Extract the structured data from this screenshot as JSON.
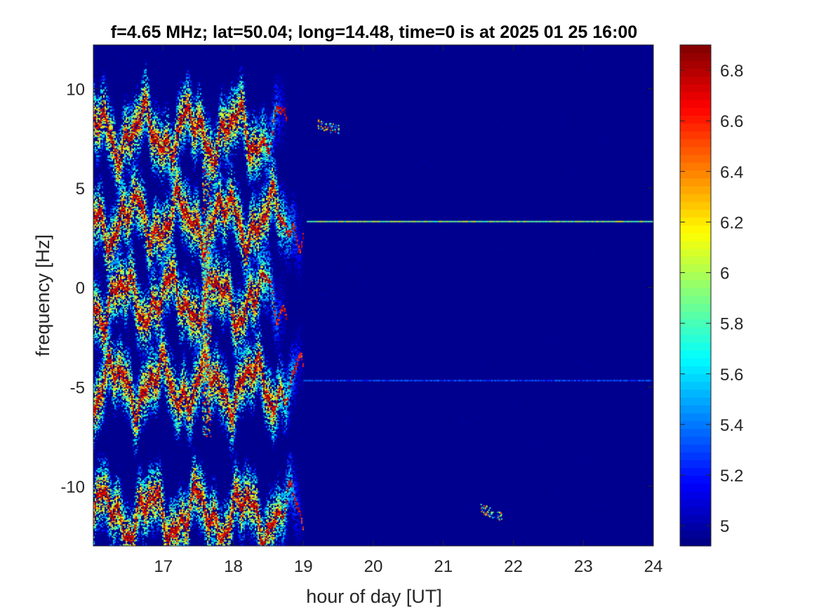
{
  "chart_data": {
    "type": "heatmap",
    "title": "f=4.65 MHz;  lat=50.04; long=14.48, time=0 is at 2025 01 25 16:00",
    "xlabel": "hour of day [UT]",
    "ylabel": "frequency [Hz]",
    "xlim": [
      16,
      24
    ],
    "ylim": [
      -13,
      12.2
    ],
    "x_ticks": [
      17,
      18,
      19,
      20,
      21,
      22,
      23,
      24
    ],
    "y_ticks": [
      -10,
      -5,
      0,
      5,
      10
    ],
    "x_tick_labels": [
      "17",
      "18",
      "19",
      "20",
      "21",
      "22",
      "23",
      "24"
    ],
    "y_tick_labels": [
      "-10",
      "-5",
      "0",
      "5",
      "10"
    ],
    "colorbar": {
      "colormap": "jet",
      "clim": [
        4.92,
        6.9
      ],
      "ticks": [
        5,
        5.2,
        5.4,
        5.6,
        5.8,
        6,
        6.2,
        6.4,
        6.6,
        6.8
      ],
      "tick_labels": [
        "5",
        "5.2",
        "5.4",
        "5.6",
        "5.8",
        "6",
        "6.2",
        "6.4",
        "6.6",
        "6.8"
      ]
    },
    "background_value": 4.95,
    "bands": [
      {
        "center_frequency": 7.8,
        "x_start": 16.0,
        "x_end": 18.75
      },
      {
        "center_frequency": 3.4,
        "x_start": 16.0,
        "x_end": 19.0
      },
      {
        "center_frequency": -0.6,
        "x_start": 16.0,
        "x_end": 18.75
      },
      {
        "center_frequency": -4.9,
        "x_start": 16.0,
        "x_end": 19.0
      },
      {
        "center_frequency": -11.4,
        "x_start": 16.0,
        "x_end": 19.0
      }
    ],
    "steady_lines": [
      {
        "frequency": 3.35,
        "x_start": 19.05,
        "x_end": 24.0
      },
      {
        "frequency": -4.65,
        "x_start": 19.0,
        "x_end": 24.0
      }
    ],
    "blips": [
      {
        "x": 19.35,
        "frequency": 8.1
      },
      {
        "x": 21.68,
        "frequency": -11.3
      }
    ],
    "grid": false
  }
}
